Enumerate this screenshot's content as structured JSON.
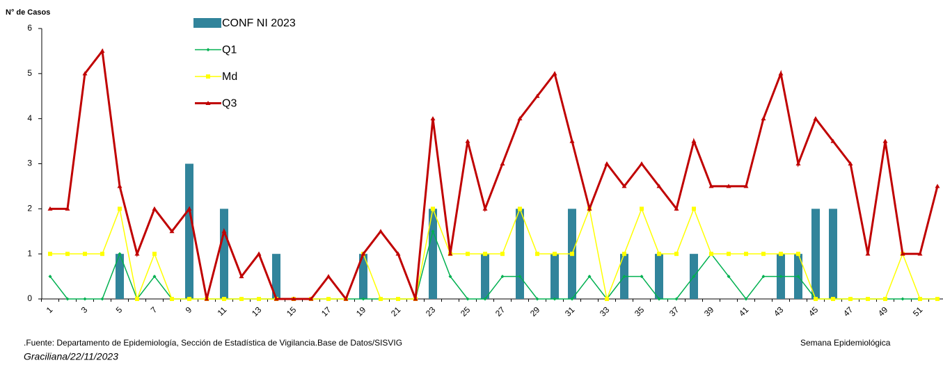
{
  "chart_data": {
    "type": "bar",
    "ylabel": "N° de Casos",
    "xlabel": "Semana Epidemiológica",
    "source": ".Fuente: Departamento de Epidemiología, Sección de Estadística de Vigilancia.Base de Datos/SISVIG",
    "author": "Graciliana/22/11/2023",
    "categories": [
      1,
      null,
      3,
      null,
      5,
      null,
      7,
      null,
      9,
      null,
      11,
      null,
      13,
      null,
      15,
      null,
      17,
      null,
      19,
      null,
      21,
      null,
      23,
      null,
      25,
      null,
      27,
      null,
      29,
      null,
      31,
      null,
      33,
      null,
      35,
      null,
      37,
      null,
      39,
      null,
      41,
      null,
      43,
      null,
      45,
      null,
      47,
      null,
      49,
      null,
      51,
      null
    ],
    "ylim": [
      0,
      6
    ],
    "yticks": [
      0,
      1,
      2,
      3,
      4,
      5,
      6
    ],
    "series": [
      {
        "name": "CONF NI 2023",
        "type": "bar",
        "color": "#31849b",
        "values": [
          0,
          0,
          0,
          0,
          1,
          0,
          0,
          0,
          3,
          0,
          2,
          0,
          0,
          1,
          0,
          0,
          0,
          0,
          1,
          0,
          0,
          0,
          2,
          0,
          0,
          1,
          0,
          2,
          0,
          1,
          2,
          0,
          0,
          1,
          0,
          1,
          0,
          1,
          0,
          0,
          0,
          0,
          1,
          1,
          2,
          2,
          0,
          0,
          0,
          0,
          0,
          0
        ]
      },
      {
        "name": "Q1",
        "type": "line",
        "marker": "diamond",
        "color": "#00b050",
        "values": [
          0.5,
          0,
          0,
          0,
          1,
          0,
          0.5,
          0,
          0,
          0,
          0,
          0,
          0,
          0,
          0,
          0,
          0,
          0,
          0,
          0,
          0,
          0,
          1.5,
          0.5,
          0,
          0,
          0.5,
          0.5,
          0,
          0,
          0,
          0.5,
          0,
          0.5,
          0.5,
          0,
          0,
          0.5,
          1,
          0.5,
          0,
          0.5,
          0.5,
          0.5,
          0,
          0,
          0,
          0,
          0,
          0,
          0,
          0
        ]
      },
      {
        "name": "Md",
        "type": "line",
        "marker": "square",
        "color": "#ffff00",
        "values": [
          1,
          1,
          1,
          1,
          2,
          0,
          1,
          0,
          0,
          0,
          0,
          0,
          0,
          0,
          0,
          0,
          0,
          0,
          1,
          0,
          0,
          0,
          2,
          1,
          1,
          1,
          1,
          2,
          1,
          1,
          1,
          2,
          0,
          1,
          2,
          1,
          1,
          2,
          1,
          1,
          1,
          1,
          1,
          1,
          0,
          0,
          0,
          0,
          0,
          1,
          0,
          0
        ]
      },
      {
        "name": "Q3",
        "type": "line",
        "marker": "triangle",
        "color": "#c00000",
        "values": [
          2,
          2,
          5,
          5.5,
          2.5,
          1,
          2,
          1.5,
          2,
          0,
          1.5,
          0.5,
          1,
          0,
          0,
          0,
          0.5,
          0,
          1,
          1.5,
          1,
          0,
          4,
          1,
          3.5,
          2,
          3,
          4,
          4.5,
          5,
          3.5,
          2,
          3,
          2.5,
          3,
          2.5,
          2,
          3.5,
          2.5,
          2.5,
          2.5,
          4,
          5,
          3,
          4,
          3.5,
          3,
          1,
          3.5,
          1,
          1,
          2.5
        ]
      }
    ]
  }
}
